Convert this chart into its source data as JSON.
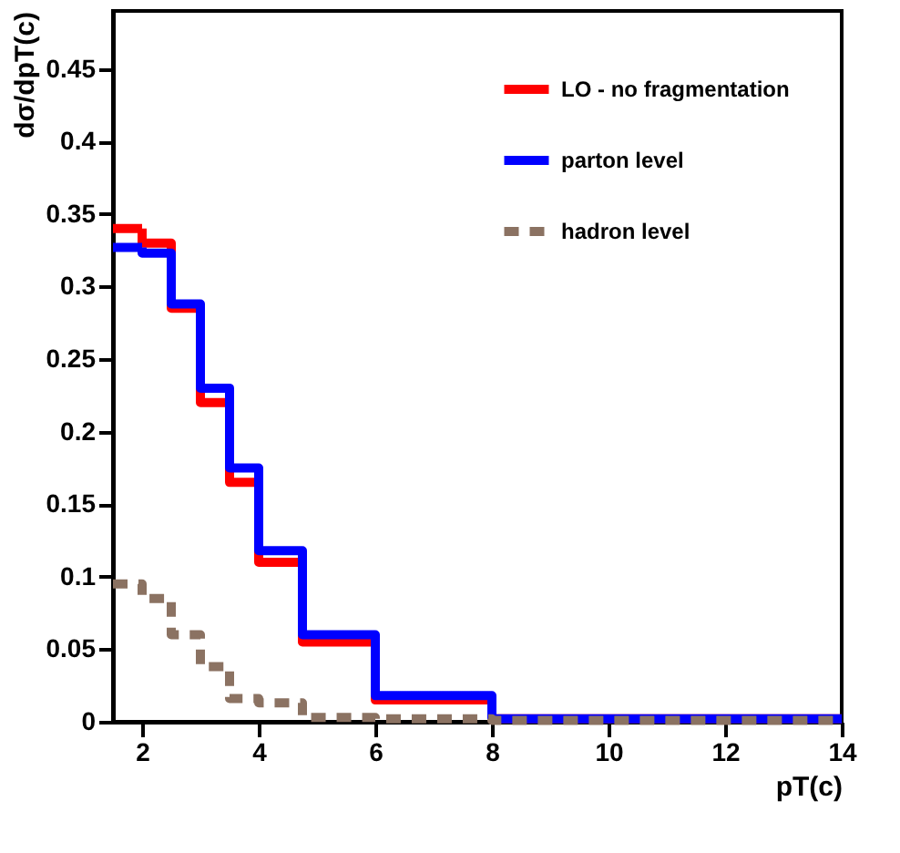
{
  "chart_data": {
    "type": "histogram",
    "xlabel": "pT(c)",
    "ylabel": "dσ/dpT(c)",
    "bins": [
      1.5,
      2,
      2.5,
      3,
      3.5,
      4,
      4.75,
      6,
      8,
      14
    ],
    "series": [
      {
        "name": "LO - no fragmentation",
        "color": "#ff0000",
        "line_style": "solid",
        "values": [
          0.34,
          0.33,
          0.285,
          0.22,
          0.165,
          0.11,
          0.055,
          0.015,
          0.002
        ]
      },
      {
        "name": "parton level",
        "color": "#0000ff",
        "line_style": "solid",
        "values": [
          0.327,
          0.323,
          0.288,
          0.23,
          0.175,
          0.118,
          0.06,
          0.018,
          0.002
        ]
      },
      {
        "name": "hadron level",
        "color": "#8b7262",
        "line_style": "dashed",
        "values": [
          0.095,
          0.085,
          0.06,
          0.038,
          0.016,
          0.013,
          0.003,
          0.002,
          0.001
        ]
      }
    ],
    "xlim": [
      1.5,
      14
    ],
    "xticks": [
      2,
      4,
      6,
      8,
      10,
      12,
      14
    ],
    "ylim": [
      0,
      0.49
    ],
    "yticks": [
      0,
      0.05,
      0.1,
      0.15,
      0.2,
      0.25,
      0.3,
      0.35,
      0.4,
      0.45
    ],
    "grid": false,
    "legend": "top right"
  }
}
